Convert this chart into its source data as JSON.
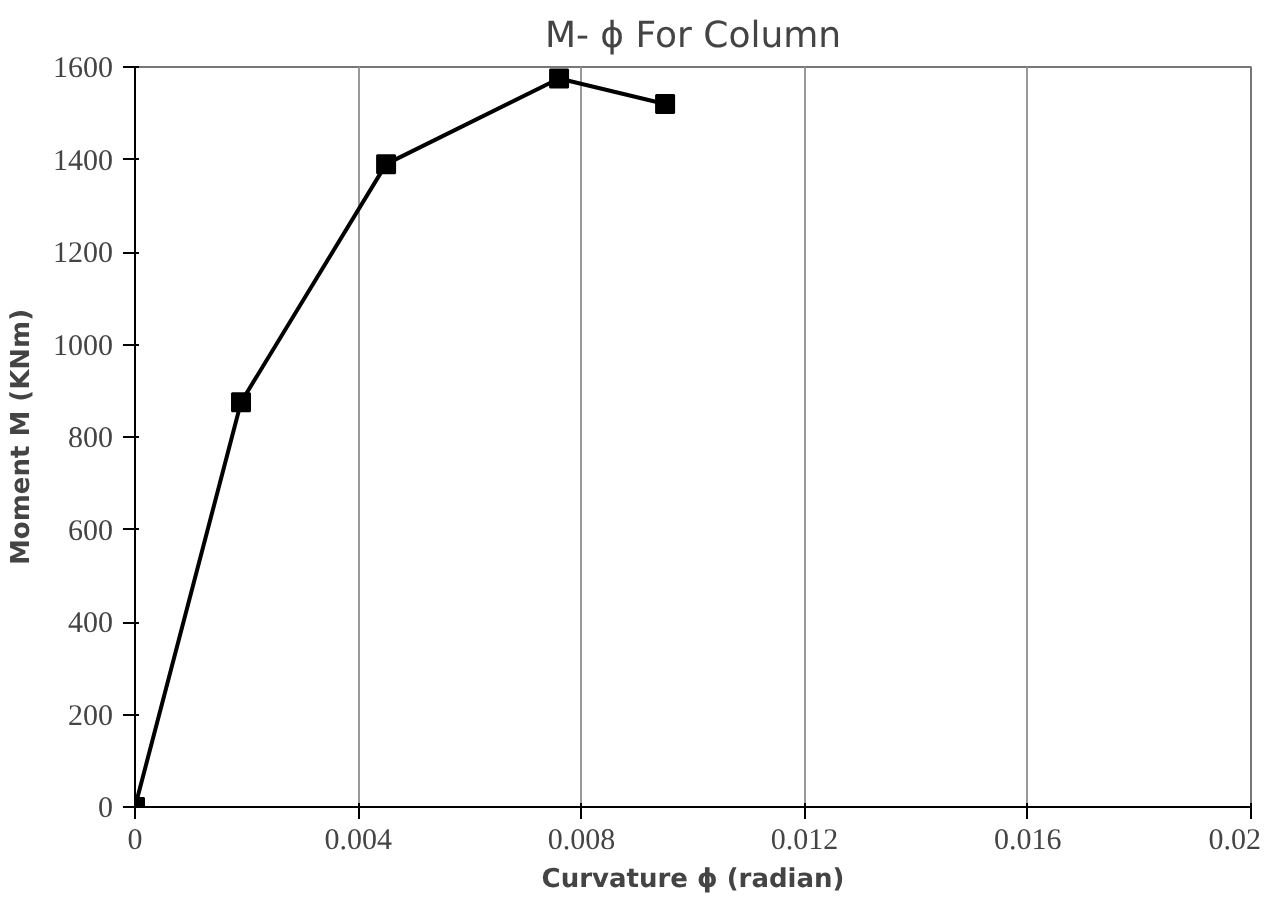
{
  "chart_data": {
    "type": "line",
    "title": "M- ϕ For Column",
    "xlabel": "Curvature ϕ (radian)",
    "ylabel": "Moment M (KNm)",
    "x": [
      0,
      0.0019,
      0.0045,
      0.0076,
      0.0095
    ],
    "series": [
      {
        "color": "#000000",
        "values": [
          0,
          875,
          1390,
          1575,
          1520
        ]
      }
    ],
    "xlim": [
      0,
      0.02
    ],
    "xticks": [
      0,
      0.004,
      0.008,
      0.012,
      0.016,
      0.02
    ],
    "ylim": [
      0,
      1600
    ],
    "yticks": [
      0,
      200,
      400,
      600,
      800,
      1000,
      1200,
      1400,
      1600
    ],
    "grid": "x",
    "marker": "square",
    "line_style": "solid"
  }
}
